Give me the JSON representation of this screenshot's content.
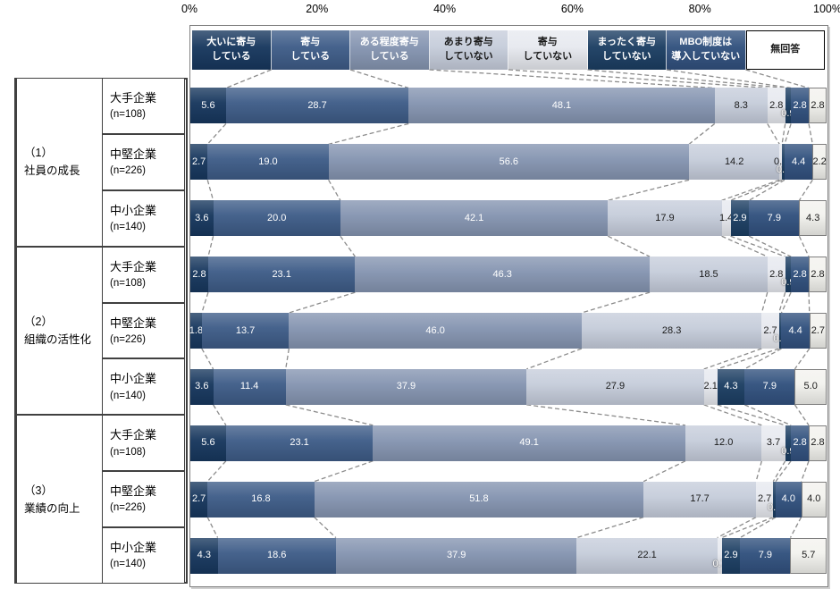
{
  "chart_data": {
    "type": "bar",
    "orientation": "horizontal-stacked",
    "title": "",
    "x_ticks": [
      "0%",
      "20%",
      "40%",
      "60%",
      "80%",
      "100%"
    ],
    "xlim": [
      0,
      100
    ],
    "legend_position": "top-strip",
    "grid": false,
    "categories": [
      "大いに寄与している",
      "寄与している",
      "ある程度寄与している",
      "あまり寄与していない",
      "寄与していない",
      "まったく寄与していない",
      "MBO制度は導入していない",
      "無回答"
    ],
    "legend_lines": [
      {
        "line1": "大いに寄与",
        "line2": "している"
      },
      {
        "line1": "寄与",
        "line2": "している"
      },
      {
        "line1": "ある程度寄与",
        "line2": "している"
      },
      {
        "line1": "あまり寄与",
        "line2": "していない"
      },
      {
        "line1": "寄与",
        "line2": "していない"
      },
      {
        "line1": "まったく寄与",
        "line2": "していない"
      },
      {
        "line1": "MBO制度は",
        "line2": "導入していない"
      },
      {
        "line1": "無回答",
        "line2": ""
      }
    ],
    "colors": [
      "#17375E",
      "#3E5C88",
      "#8595B1",
      "#C6CDDB",
      "#E7E9EF",
      "#1C3E63",
      "#31517E",
      "#F3F2EE"
    ],
    "label_colors": [
      "#ffffff",
      "#ffffff",
      "#ffffff",
      "#1a1a1a",
      "#1a1a1a",
      "#ffffff",
      "#ffffff",
      "#1a1a1a"
    ],
    "no_answer_border_color": "#7f7f7f",
    "connector_color": "#8c8c8c",
    "groups": [
      {
        "no": "（1）",
        "label": "社員の成長"
      },
      {
        "no": "（2）",
        "label": "組織の活性化"
      },
      {
        "no": "（3）",
        "label": "業績の向上"
      }
    ],
    "rows": [
      {
        "group": 0,
        "company": "大手企業",
        "n": "(n=108)",
        "values": [
          5.6,
          28.7,
          48.1,
          8.3,
          2.8,
          0.9,
          2.8,
          2.8
        ],
        "below": [
          5
        ]
      },
      {
        "group": 0,
        "company": "中堅企業",
        "n": "(n=226)",
        "values": [
          2.7,
          19.0,
          56.6,
          14.2,
          0.4,
          0.4,
          4.4,
          2.2
        ],
        "below": [
          5
        ]
      },
      {
        "group": 0,
        "company": "中小企業",
        "n": "(n=140)",
        "values": [
          3.6,
          20.0,
          42.1,
          17.9,
          1.4,
          2.9,
          7.9,
          4.3
        ],
        "below": []
      },
      {
        "group": 1,
        "company": "大手企業",
        "n": "(n=108)",
        "values": [
          2.8,
          23.1,
          46.3,
          18.5,
          2.8,
          0.9,
          2.8,
          2.8
        ],
        "below": [
          5
        ]
      },
      {
        "group": 1,
        "company": "中堅企業",
        "n": "(n=226)",
        "values": [
          1.8,
          13.7,
          46.0,
          28.3,
          2.7,
          0.4,
          4.4,
          2.7
        ],
        "below": [
          5
        ]
      },
      {
        "group": 1,
        "company": "中小企業",
        "n": "(n=140)",
        "values": [
          3.6,
          11.4,
          37.9,
          27.9,
          2.1,
          4.3,
          7.9,
          5.0
        ],
        "below": []
      },
      {
        "group": 2,
        "company": "大手企業",
        "n": "(n=108)",
        "values": [
          5.6,
          23.1,
          49.1,
          12.0,
          3.7,
          0.9,
          2.8,
          2.8
        ],
        "below": [
          5
        ]
      },
      {
        "group": 2,
        "company": "中堅企業",
        "n": "(n=226)",
        "values": [
          2.7,
          16.8,
          51.8,
          17.7,
          2.7,
          0.4,
          4.0,
          4.0
        ],
        "below": [
          5
        ]
      },
      {
        "group": 2,
        "company": "中小企業",
        "n": "(n=140)",
        "values": [
          4.3,
          18.6,
          37.9,
          22.1,
          0.7,
          2.9,
          7.9,
          5.7
        ],
        "below": [
          4
        ]
      }
    ]
  }
}
